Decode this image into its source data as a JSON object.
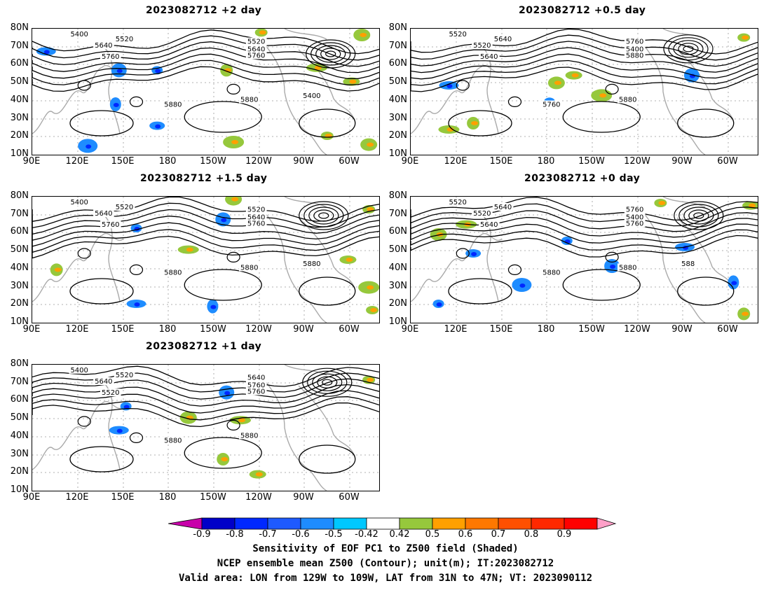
{
  "panels": [
    {
      "id": "p-2day",
      "title": "2023082712 +2 day",
      "labels": [
        "5400",
        "5520",
        "5640",
        "5760",
        "5520",
        "5640",
        "5760",
        "5880",
        "5880",
        "5400"
      ],
      "warm": [
        [
          0.66,
          0.03
        ],
        [
          0.95,
          0.05
        ],
        [
          0.82,
          0.31
        ],
        [
          0.56,
          0.33
        ],
        [
          0.92,
          0.42
        ],
        [
          0.58,
          0.9
        ],
        [
          0.85,
          0.85
        ],
        [
          0.97,
          0.92
        ]
      ],
      "cold": [
        [
          0.36,
          0.33
        ],
        [
          0.25,
          0.33
        ],
        [
          0.04,
          0.18
        ],
        [
          0.24,
          0.6
        ],
        [
          0.36,
          0.77
        ],
        [
          0.16,
          0.93
        ]
      ]
    },
    {
      "id": "p-05day",
      "title": "2023082712 +0.5 day",
      "labels": [
        "5520",
        "5640",
        "5520",
        "5640",
        "5760",
        "5400",
        "5880",
        "5760",
        "5880"
      ],
      "warm": [
        [
          0.96,
          0.07
        ],
        [
          0.42,
          0.43
        ],
        [
          0.11,
          0.8
        ],
        [
          0.18,
          0.75
        ],
        [
          0.47,
          0.37
        ],
        [
          0.55,
          0.53
        ]
      ],
      "cold": [
        [
          0.4,
          0.58
        ],
        [
          0.81,
          0.37
        ],
        [
          0.11,
          0.45
        ]
      ]
    },
    {
      "id": "p-15day",
      "title": "2023082712 +1.5 day",
      "labels": [
        "5400",
        "5520",
        "5640",
        "5760",
        "5520",
        "5640",
        "5760",
        "5880",
        "5880",
        "5880"
      ],
      "warm": [
        [
          0.97,
          0.1
        ],
        [
          0.58,
          0.02
        ],
        [
          0.45,
          0.42
        ],
        [
          0.07,
          0.58
        ],
        [
          0.91,
          0.5
        ],
        [
          0.97,
          0.72
        ],
        [
          0.98,
          0.9
        ]
      ],
      "cold": [
        [
          0.3,
          0.25
        ],
        [
          0.55,
          0.18
        ],
        [
          0.3,
          0.85
        ],
        [
          0.52,
          0.87
        ]
      ]
    },
    {
      "id": "p-0day",
      "title": "2023082712 +0 day",
      "labels": [
        "5520",
        "5640",
        "5520",
        "5640",
        "5760",
        "5400",
        "5760",
        "5880",
        "5880",
        "588"
      ],
      "warm": [
        [
          0.72,
          0.05
        ],
        [
          0.08,
          0.3
        ],
        [
          0.16,
          0.22
        ],
        [
          0.96,
          0.93
        ],
        [
          0.98,
          0.07
        ]
      ],
      "cold": [
        [
          0.45,
          0.35
        ],
        [
          0.58,
          0.55
        ],
        [
          0.79,
          0.4
        ],
        [
          0.93,
          0.68
        ],
        [
          0.18,
          0.45
        ],
        [
          0.32,
          0.7
        ],
        [
          0.08,
          0.85
        ]
      ]
    },
    {
      "id": "p-1day",
      "title": "2023082712 +1 day",
      "labels": [
        "5400",
        "5520",
        "5640",
        "5520",
        "5640",
        "5760",
        "5760",
        "5880",
        "5880"
      ],
      "warm": [
        [
          0.97,
          0.12
        ],
        [
          0.45,
          0.42
        ],
        [
          0.6,
          0.44
        ],
        [
          0.55,
          0.75
        ],
        [
          0.65,
          0.87
        ]
      ],
      "cold": [
        [
          0.27,
          0.33
        ],
        [
          0.56,
          0.22
        ],
        [
          0.25,
          0.52
        ]
      ]
    }
  ],
  "lat_labels": [
    "80N",
    "70N",
    "60N",
    "50N",
    "40N",
    "30N",
    "20N",
    "10N"
  ],
  "lon_labels": [
    "90E",
    "120E",
    "150E",
    "180",
    "150W",
    "120W",
    "90W",
    "60W"
  ],
  "colorbar": {
    "colors": [
      "#c800aa",
      "#0000c8",
      "#0028ff",
      "#1e5aff",
      "#1e8cff",
      "#00c8ff",
      "#ffffff",
      "#96c83c",
      "#ffa000",
      "#ff7800",
      "#ff5000",
      "#ff2800",
      "#ff0000",
      "#ffa0c8"
    ],
    "ticks": [
      "-0.9",
      "-0.8",
      "-0.7",
      "-0.6",
      "-0.5",
      "-0.42",
      "0.42",
      "0.5",
      "0.6",
      "0.7",
      "0.8",
      "0.9"
    ]
  },
  "footer": {
    "line1": "Sensitivity of EOF PC1 to Z500 field (Shaded)",
    "line2": "NCEP ensemble mean Z500 (Contour); unit(m); IT:2023082712",
    "line3": "Valid area: LON from 129W to 109W, LAT from 31N to 47N; VT: 2023090112"
  }
}
